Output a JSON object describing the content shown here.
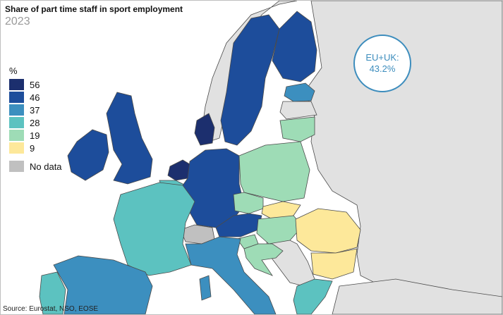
{
  "title": "Share of part time staff in sport employment",
  "year": "2023",
  "legend": {
    "unit": "%",
    "classes": [
      {
        "label": "56",
        "color": "#1c2f6e"
      },
      {
        "label": "46",
        "color": "#1d4d9b"
      },
      {
        "label": "37",
        "color": "#3c8fbf"
      },
      {
        "label": "28",
        "color": "#5cc2c0"
      },
      {
        "label": "19",
        "color": "#9edcb6"
      },
      {
        "label": "9",
        "color": "#fde89a"
      }
    ],
    "no_data_label": "No data",
    "no_data_color": "#c0c0c0"
  },
  "badge": {
    "line1": "EU+UK:",
    "line2": "43.2%"
  },
  "source": "Source: Eurostat, NSO, EOSE",
  "map_colors": {
    "sea": "#ffffff",
    "non_eu": "#e1e1e1",
    "border": "#4a4a4a"
  }
}
